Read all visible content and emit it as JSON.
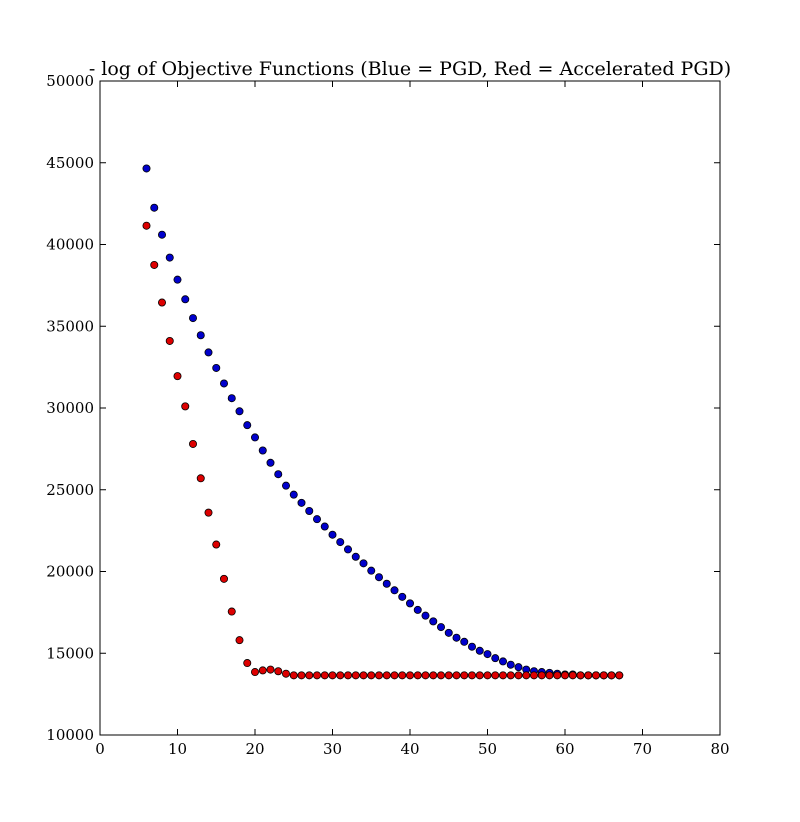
{
  "chart_data": {
    "type": "scatter",
    "title": "- log of Objective Functions (Blue = PGD, Red = Accelerated PGD)",
    "xlabel": "",
    "ylabel": "",
    "xlim": [
      0,
      80
    ],
    "ylim": [
      10000,
      50000
    ],
    "x_ticks": [
      "0",
      "10",
      "20",
      "30",
      "40",
      "50",
      "60",
      "70",
      "80"
    ],
    "y_ticks": [
      "10000",
      "15000",
      "20000",
      "25000",
      "30000",
      "35000",
      "40000",
      "45000",
      "50000"
    ],
    "grid": false,
    "series": [
      {
        "color": "#0000cc",
        "x": [
          6,
          7,
          8,
          9,
          10,
          11,
          12,
          13,
          14,
          15,
          16,
          17,
          18,
          19,
          20,
          21,
          22,
          23,
          24,
          25,
          26,
          27,
          28,
          29,
          30,
          31,
          32,
          33,
          34,
          35,
          36,
          37,
          38,
          39,
          40,
          41,
          42,
          43,
          44,
          45,
          46,
          47,
          48,
          49,
          50,
          51,
          52,
          53,
          54,
          55,
          56,
          57,
          58,
          59,
          60,
          61,
          62,
          63,
          64,
          65,
          66,
          67
        ],
        "y": [
          44650,
          42250,
          40600,
          39200,
          37850,
          36650,
          35500,
          34450,
          33400,
          32450,
          31500,
          30600,
          29800,
          28950,
          28200,
          27400,
          26650,
          25950,
          25250,
          24700,
          24200,
          23700,
          23200,
          22750,
          22250,
          21800,
          21350,
          20900,
          20500,
          20050,
          19650,
          19250,
          18850,
          18450,
          18050,
          17650,
          17300,
          16950,
          16600,
          16250,
          15950,
          15700,
          15400,
          15150,
          14950,
          14700,
          14500,
          14300,
          14150,
          14000,
          13900,
          13850,
          13800,
          13750,
          13700,
          13700,
          13650,
          13650,
          13650,
          13650,
          13650,
          13650
        ]
      },
      {
        "color": "#dd0000",
        "x": [
          6,
          7,
          8,
          9,
          10,
          11,
          12,
          13,
          14,
          15,
          16,
          17,
          18,
          19,
          20,
          21,
          22,
          23,
          24,
          25,
          26,
          27,
          28,
          29,
          30,
          31,
          32,
          33,
          34,
          35,
          36,
          37,
          38,
          39,
          40,
          41,
          42,
          43,
          44,
          45,
          46,
          47,
          48,
          49,
          50,
          51,
          52,
          53,
          54,
          55,
          56,
          57,
          58,
          59,
          60,
          61,
          62,
          63,
          64,
          65,
          66,
          67
        ],
        "y": [
          41150,
          38750,
          36450,
          34100,
          31950,
          30100,
          27800,
          25700,
          23600,
          21650,
          19550,
          17550,
          15800,
          14400,
          13850,
          13950,
          14000,
          13900,
          13750,
          13650,
          13650,
          13650,
          13650,
          13650,
          13650,
          13650,
          13650,
          13650,
          13650,
          13650,
          13650,
          13650,
          13650,
          13650,
          13650,
          13650,
          13650,
          13650,
          13650,
          13650,
          13650,
          13650,
          13650,
          13650,
          13650,
          13650,
          13650,
          13650,
          13650,
          13650,
          13650,
          13650,
          13650,
          13650,
          13650,
          13650,
          13650,
          13650,
          13650,
          13650,
          13650,
          13650
        ]
      }
    ]
  }
}
